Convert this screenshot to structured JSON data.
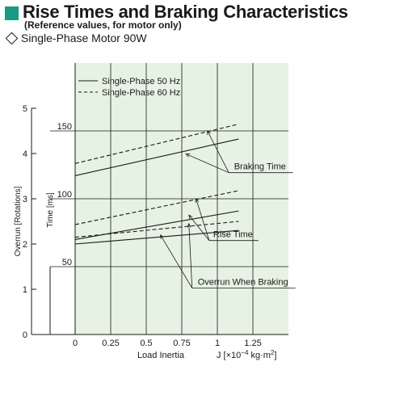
{
  "header": {
    "title": "Rise Times and Braking Characteristics",
    "subtitle": "(Reference values, for motor only)",
    "motor_label": "Single-Phase Motor  90W"
  },
  "colors": {
    "plot_background": "#e6f2e3",
    "accent": "#1a9a82",
    "line": "#1a1a1a"
  },
  "chart_data": {
    "type": "line",
    "xlabel": "Load Inertia",
    "xunit_prefix": "J  [×10",
    "xunit_exp": "−4",
    "xunit_suffix": " kg·m",
    "xunit_sq": "2",
    "xunit_end": "]",
    "ylabel_time": "Time [ms]",
    "ylabel_overrun": "Overrun [Rotations]",
    "xlim": [
      0,
      1.5
    ],
    "x_ticks": [
      0,
      0.25,
      0.5,
      0.75,
      1,
      1.25
    ],
    "x_tick_labels": [
      "0",
      "0.25",
      "0.5",
      "0.75",
      "1",
      "1.25"
    ],
    "time_axis": {
      "lim": [
        0,
        200
      ],
      "ticks": [
        50,
        100,
        150
      ],
      "tick_labels": [
        "50",
        "100",
        "150"
      ]
    },
    "overrun_axis": {
      "lim": [
        0,
        6
      ],
      "ticks": [
        0,
        1,
        2,
        3,
        4,
        5
      ],
      "tick_labels": [
        "0",
        "1",
        "2",
        "3",
        "4",
        "5"
      ]
    },
    "grid": "vertical and horizontal at labeled ticks",
    "legend": {
      "position": "top-left",
      "entries": [
        {
          "label": "Single-Phase 50 Hz",
          "style": "solid"
        },
        {
          "label": "Single-Phase 60 Hz",
          "style": "dashed"
        }
      ]
    },
    "series": [
      {
        "name": "Single-Phase 50 Hz",
        "group": "Braking Time",
        "axis": "time",
        "style": "solid",
        "x": [
          0,
          1.15
        ],
        "y": [
          117,
          144
        ]
      },
      {
        "name": "Single-Phase 60 Hz",
        "group": "Braking Time",
        "axis": "time",
        "style": "dashed",
        "x": [
          0,
          1.15
        ],
        "y": [
          126,
          155
        ]
      },
      {
        "name": "Single-Phase 50 Hz",
        "group": "Rise Time",
        "axis": "time",
        "style": "solid",
        "x": [
          0,
          1.15
        ],
        "y": [
          70,
          91
        ]
      },
      {
        "name": "Single-Phase 60 Hz",
        "group": "Rise Time",
        "axis": "time",
        "style": "dashed",
        "x": [
          0,
          1.15
        ],
        "y": [
          81,
          106
        ]
      },
      {
        "name": "Single-Phase 50 Hz",
        "group": "Overrun When Braking",
        "axis": "overrun",
        "style": "solid",
        "x": [
          0,
          1.15
        ],
        "y": [
          2.0,
          2.3
        ]
      },
      {
        "name": "Single-Phase 60 Hz",
        "group": "Overrun When Braking",
        "axis": "overrun",
        "style": "dashed",
        "x": [
          0,
          1.15
        ],
        "y": [
          2.15,
          2.5
        ]
      }
    ],
    "annotations": [
      {
        "text": "Braking Time",
        "axis": "time",
        "x": 1.3,
        "y": 124,
        "pointers": [
          {
            "x": 0.93,
            "y": 150
          },
          {
            "x": 0.78,
            "y": 133
          }
        ]
      },
      {
        "text": "Rise Time",
        "axis": "time",
        "x": 1.11,
        "y": 74,
        "pointers": [
          {
            "x": 0.85,
            "y": 100
          },
          {
            "x": 0.8,
            "y": 88
          }
        ]
      },
      {
        "text": "Overrun When Braking",
        "axis": "overrun",
        "x": 1.18,
        "y": 1.17,
        "pointers": [
          {
            "x": 0.8,
            "y": 2.45
          },
          {
            "x": 0.6,
            "y": 2.2
          }
        ]
      }
    ]
  }
}
